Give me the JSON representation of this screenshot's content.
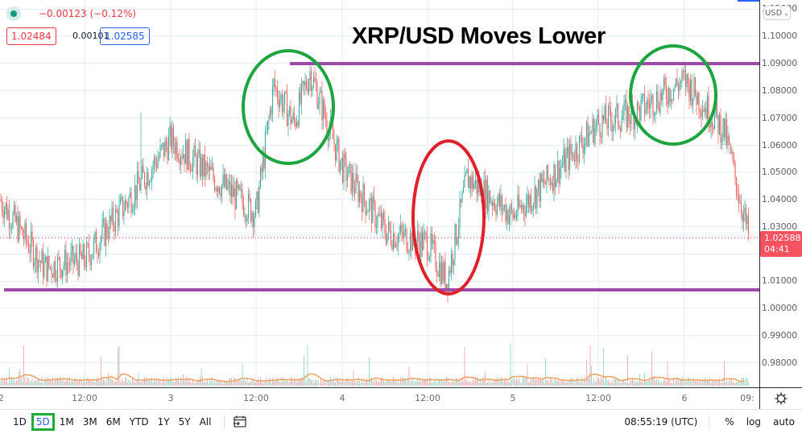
{
  "legend": {
    "change": "−0.00123 (−0.12%)",
    "bid": "1.02484",
    "spread": "0.00101",
    "ask": "1.02585"
  },
  "annotation": {
    "title": "XRP/USD Moves Lower",
    "resistance_color": "#9b4aa8",
    "support_color": "#9b4aa8",
    "top_circle_color": "#1fa540",
    "bottom_circle_color": "#e0202a"
  },
  "price_axis": {
    "currency": "USD",
    "ticks": [
      "1.11000",
      "1.10000",
      "1.09000",
      "1.08000",
      "1.07000",
      "1.06000",
      "1.05000",
      "1.04000",
      "1.03000",
      "1.01000",
      "1.00000",
      "0.99000",
      "0.98000"
    ],
    "last_price": "1.02588",
    "countdown": "04:41"
  },
  "time_axis": {
    "ticks": [
      "2",
      "12:00",
      "3",
      "12:00",
      "4",
      "12:00",
      "5",
      "12:00",
      "6",
      "09:"
    ]
  },
  "toolbar": {
    "ranges": [
      "1D",
      "5D",
      "1M",
      "3M",
      "6M",
      "YTD",
      "1Y",
      "5Y",
      "All"
    ],
    "active_range": "5D",
    "clock": "08:55:19 (UTC)",
    "percent_label": "%",
    "log_label": "log",
    "auto_label": "auto"
  },
  "colors": {
    "up": "#26a69a",
    "down": "#ef5350",
    "volume_ma": "#f0a060",
    "last_price_bg": "#f7525f",
    "grid": "#e1ecf2"
  },
  "chart_data": {
    "type": "candlestick",
    "title": "XRP/USD Moves Lower",
    "symbol": "XRP/USD",
    "interval_range": "5D",
    "ylim": [
      0.975,
      1.112
    ],
    "y_ticks": [
      0.98,
      0.99,
      1.0,
      1.01,
      1.03,
      1.04,
      1.05,
      1.06,
      1.07,
      1.08,
      1.09,
      1.1
    ],
    "x_ticks": [
      "2",
      "12:00",
      "3",
      "12:00",
      "4",
      "12:00",
      "5",
      "12:00",
      "6",
      "09:"
    ],
    "approx_path": {
      "x": [
        "Day2 00:00",
        "Day2 06:00",
        "Day2 12:00",
        "Day2 18:00",
        "Day3 00:00",
        "Day3 06:00",
        "Day3 12:00",
        "Day3 15:00",
        "Day3 18:00",
        "Day3 21:00",
        "Day4 00:00",
        "Day4 06:00",
        "Day4 12:00",
        "Day4 14:00",
        "Day4 18:00",
        "Day5 00:00",
        "Day5 06:00",
        "Day5 12:00",
        "Day5 18:00",
        "Day6 00:00",
        "Day6 06:00",
        "Day6 09:00"
      ],
      "close": [
        1.04,
        1.015,
        1.018,
        1.04,
        1.062,
        1.048,
        1.035,
        1.082,
        1.068,
        1.087,
        1.052,
        1.028,
        1.024,
        1.01,
        1.048,
        1.034,
        1.05,
        1.068,
        1.072,
        1.084,
        1.065,
        1.0259
      ]
    },
    "resistance_level": 1.0895,
    "support_level": 1.0065,
    "last_price": 1.02588,
    "change": -0.00123,
    "change_pct": -0.12,
    "annotations": [
      "Green circle: double top near resistance (Day3 ~15:00-21:00)",
      "Red circle: spike low near support (Day4 ~12:00)",
      "Green circle: peak near resistance (Day5-6)"
    ],
    "volume": {
      "ma_color": "#f0a060",
      "note": "volume histogram with moving average at bottom"
    }
  }
}
